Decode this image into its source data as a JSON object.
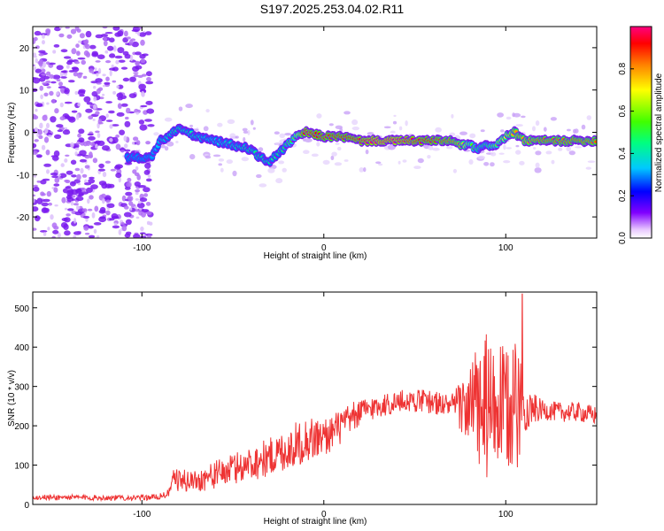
{
  "title": "S197.2025.253.04.02.R11",
  "chart_data": [
    {
      "type": "heatmap",
      "xlabel": "Height of straight line (km)",
      "ylabel": "Frequency (Hz)",
      "xlim": [
        -160,
        150
      ],
      "ylim": [
        -25,
        25
      ],
      "xticks": [
        -100,
        0,
        100
      ],
      "xtick_labels": [
        "-100",
        "0",
        "100"
      ],
      "yticks": [
        -20,
        -10,
        0,
        10,
        20
      ],
      "ytick_labels": [
        "-20",
        "-10",
        "0",
        "10",
        "20"
      ],
      "colorbar": {
        "label": "Normalized spectral amplitude",
        "range": [
          0,
          1
        ],
        "ticks": [
          0,
          0.2,
          0.4,
          0.6,
          0.8
        ],
        "tick_labels": [
          "0.0",
          "0.2",
          "0.4",
          "0.6",
          "0.8"
        ]
      },
      "ridge": {
        "x": [
          -160,
          -105,
          -95,
          -90,
          -85,
          -80,
          -70,
          -60,
          -50,
          -40,
          -35,
          -30,
          -25,
          -20,
          -15,
          -10,
          0,
          10,
          20,
          30,
          40,
          50,
          60,
          70,
          75,
          80,
          85,
          90,
          95,
          100,
          105,
          110,
          120,
          130,
          140,
          150
        ],
        "freq": [
          null,
          -6,
          -6,
          -2,
          -1,
          1,
          -1,
          -2,
          -3,
          -4,
          -6,
          -7,
          -5,
          -3,
          -1,
          0,
          -1,
          -1,
          -2,
          -2,
          -2,
          -2,
          -2,
          -2,
          -3,
          -3,
          -4,
          -3,
          -3,
          -1,
          0,
          -2,
          -2,
          -2,
          -2,
          -2
        ],
        "amplitude": [
          0.2,
          0.3,
          0.3,
          0.35,
          0.4,
          0.45,
          0.4,
          0.35,
          0.4,
          0.45,
          0.45,
          0.45,
          0.45,
          0.5,
          0.6,
          0.95,
          0.9,
          0.9,
          0.95,
          1.0,
          1.0,
          0.95,
          0.9,
          0.85,
          0.8,
          0.6,
          0.5,
          0.5,
          0.6,
          0.7,
          0.8,
          0.8,
          0.85,
          0.85,
          0.85,
          0.85
        ]
      }
    },
    {
      "type": "line",
      "xlabel": "Height of straight line (km)",
      "ylabel": "SNR (10 * v/v)",
      "xlim": [
        -160,
        150
      ],
      "ylim": [
        0,
        540
      ],
      "xticks": [
        -100,
        0,
        100
      ],
      "xtick_labels": [
        "-100",
        "0",
        "100"
      ],
      "yticks": [
        0,
        100,
        200,
        300,
        400,
        500
      ],
      "ytick_labels": [
        "0",
        "100",
        "200",
        "300",
        "400",
        "500"
      ],
      "color": "#ee3333",
      "series": [
        {
          "name": "SNR",
          "x": [
            -160,
            -140,
            -120,
            -100,
            -90,
            -85,
            -82,
            -80,
            -70,
            -60,
            -50,
            -40,
            -30,
            -20,
            -10,
            0,
            10,
            20,
            30,
            40,
            50,
            60,
            70,
            80,
            85,
            90,
            95,
            100,
            105,
            108,
            110,
            120,
            130,
            140,
            150
          ],
          "mean": [
            18,
            18,
            17,
            17,
            20,
            30,
            75,
            60,
            60,
            75,
            90,
            105,
            120,
            140,
            165,
            170,
            200,
            235,
            250,
            260,
            265,
            260,
            250,
            250,
            245,
            240,
            240,
            245,
            250,
            250,
            245,
            240,
            235,
            235,
            225
          ],
          "spread": [
            7,
            7,
            7,
            7,
            8,
            12,
            25,
            28,
            30,
            35,
            40,
            45,
            50,
            55,
            60,
            50,
            45,
            35,
            30,
            30,
            30,
            30,
            30,
            100,
            170,
            200,
            160,
            160,
            170,
            150,
            60,
            25,
            25,
            25,
            25
          ],
          "peak": {
            "x": 109,
            "y": 535
          }
        }
      ]
    }
  ]
}
